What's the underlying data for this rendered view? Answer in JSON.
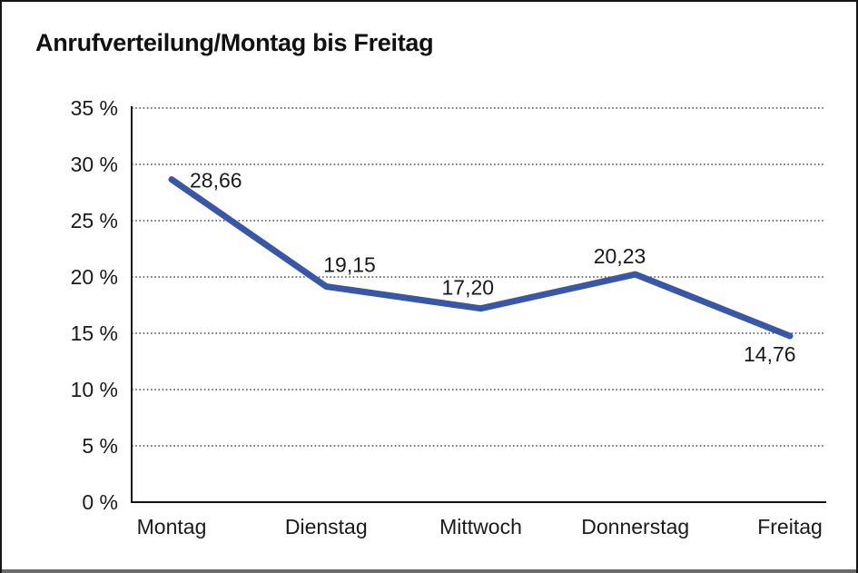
{
  "chart_data": {
    "type": "line",
    "title": "Anrufverteilung/Montag bis Freitag",
    "categories": [
      "Montag",
      "Dienstag",
      "Mittwoch",
      "Donnerstag",
      "Freitag"
    ],
    "series": [
      {
        "name": "Anrufverteilung",
        "values": [
          28.66,
          19.15,
          17.2,
          20.23,
          14.76
        ]
      }
    ],
    "point_labels": [
      "28,66",
      "19,15",
      "17,20",
      "20,23",
      "14,76"
    ],
    "y_ticks": [
      {
        "value": 0,
        "label": "0 %"
      },
      {
        "value": 5,
        "label": "5 %"
      },
      {
        "value": 10,
        "label": "10 %"
      },
      {
        "value": 15,
        "label": "15 %"
      },
      {
        "value": 20,
        "label": "20 %"
      },
      {
        "value": 25,
        "label": "25 %"
      },
      {
        "value": 30,
        "label": "30 %"
      },
      {
        "value": 35,
        "label": "35 %"
      }
    ],
    "ylim": [
      0,
      35
    ],
    "xlabel": "",
    "ylabel": "",
    "grid": "horizontal-dotted",
    "legend": "none",
    "line_color": "#3a57a6",
    "axis_color": "#111111",
    "grid_color": "#4d4d4d",
    "text_color": "#1a1a1a",
    "background": "#ffffff"
  }
}
